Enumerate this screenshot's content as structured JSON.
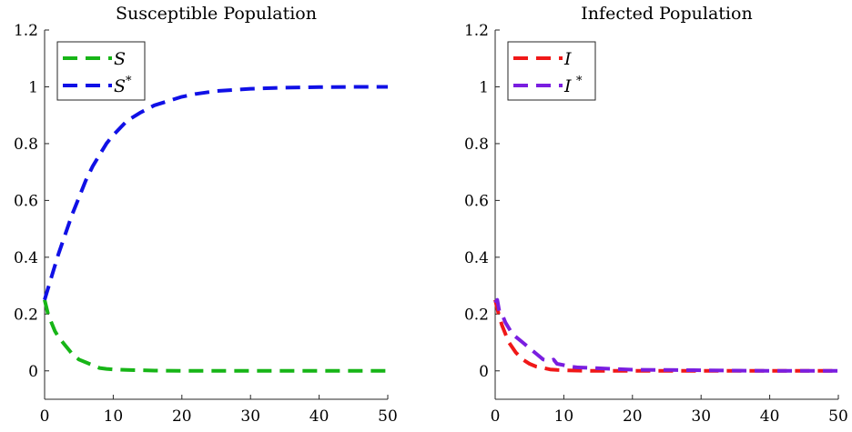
{
  "chart_data": [
    {
      "type": "line",
      "title": "Susceptible Population",
      "xlabel": "",
      "ylabel": "",
      "xlim": [
        0,
        50
      ],
      "ylim": [
        -0.1,
        1.2
      ],
      "xticks": [
        0,
        10,
        20,
        30,
        40,
        50
      ],
      "xtick_labels": [
        "0",
        "10",
        "20",
        "30",
        "40",
        "50"
      ],
      "yticks": [
        0,
        0.2,
        0.4,
        0.6,
        0.8,
        1,
        1.2
      ],
      "ytick_labels": [
        "0",
        "0.2",
        "0.4",
        "0.6",
        "0.8",
        "1",
        "1.2"
      ],
      "grid": false,
      "legend_position": "top-left",
      "series": [
        {
          "name": "S",
          "legend_main": "S",
          "legend_sup": "",
          "color": "#17b517",
          "style": "dashed",
          "x": [
            0,
            0.5,
            1,
            1.5,
            2,
            3,
            4,
            5,
            6,
            7,
            8,
            9,
            10,
            12,
            14,
            16,
            20,
            25,
            30,
            35,
            40,
            45,
            50
          ],
          "y": [
            0.25,
            0.2,
            0.17,
            0.14,
            0.12,
            0.09,
            0.06,
            0.04,
            0.03,
            0.02,
            0.01,
            0.007,
            0.005,
            0.003,
            0.002,
            0.001,
            0.0,
            0.0,
            0.0,
            0.0,
            0.0,
            0.0,
            0.0
          ]
        },
        {
          "name": "S*",
          "legend_main": "S",
          "legend_sup": "*",
          "color": "#1010e6",
          "style": "dashed",
          "x": [
            0,
            1,
            2,
            3,
            4,
            5,
            6,
            7,
            8,
            9,
            10,
            12,
            14,
            16,
            18,
            20,
            22,
            25,
            28,
            30,
            35,
            40,
            45,
            50
          ],
          "y": [
            0.25,
            0.33,
            0.41,
            0.48,
            0.55,
            0.61,
            0.67,
            0.72,
            0.76,
            0.8,
            0.83,
            0.88,
            0.91,
            0.935,
            0.95,
            0.965,
            0.975,
            0.985,
            0.99,
            0.993,
            0.997,
            0.999,
            1.0,
            1.0
          ]
        }
      ]
    },
    {
      "type": "line",
      "title": "Infected Population",
      "xlabel": "",
      "ylabel": "",
      "xlim": [
        0,
        50
      ],
      "ylim": [
        -0.1,
        1.2
      ],
      "xticks": [
        0,
        10,
        20,
        30,
        40,
        50
      ],
      "xtick_labels": [
        "0",
        "10",
        "20",
        "30",
        "40",
        "50"
      ],
      "yticks": [
        0,
        0.2,
        0.4,
        0.6,
        0.8,
        1,
        1.2
      ],
      "ytick_labels": [
        "0",
        "0.2",
        "0.4",
        "0.6",
        "0.8",
        "1",
        "1.2"
      ],
      "grid": false,
      "legend_position": "top-left",
      "series": [
        {
          "name": "I",
          "legend_main": "I",
          "legend_sup": "",
          "color": "#f01818",
          "style": "dashed",
          "x": [
            0,
            0.5,
            1,
            1.5,
            2,
            3,
            4,
            5,
            6,
            7,
            8,
            9,
            10,
            12,
            14,
            16,
            20,
            25,
            30,
            35,
            40,
            45,
            50
          ],
          "y": [
            0.25,
            0.2,
            0.16,
            0.13,
            0.1,
            0.065,
            0.04,
            0.025,
            0.015,
            0.01,
            0.005,
            0.003,
            0.002,
            0.001,
            0.0,
            0.0,
            0.0,
            0.0,
            0.0,
            0.0,
            0.0,
            0.0,
            0.0
          ]
        },
        {
          "name": "I*",
          "legend_main": "I",
          "legend_sup": "*",
          "color": "#7a1ee0",
          "style": "dashed",
          "x": [
            0,
            0.3,
            0.6,
            1,
            1.5,
            2,
            2.5,
            3,
            4,
            5,
            6,
            7,
            8,
            8.5,
            9,
            10,
            11,
            12,
            14,
            16,
            18,
            20,
            25,
            30,
            35,
            40,
            45,
            50
          ],
          "y": [
            0.24,
            0.25,
            0.21,
            0.2,
            0.17,
            0.15,
            0.13,
            0.12,
            0.1,
            0.08,
            0.06,
            0.04,
            0.035,
            0.04,
            0.025,
            0.02,
            0.015,
            0.012,
            0.01,
            0.008,
            0.006,
            0.004,
            0.003,
            0.002,
            0.001,
            0.0,
            0.0,
            0.0
          ]
        }
      ]
    }
  ]
}
